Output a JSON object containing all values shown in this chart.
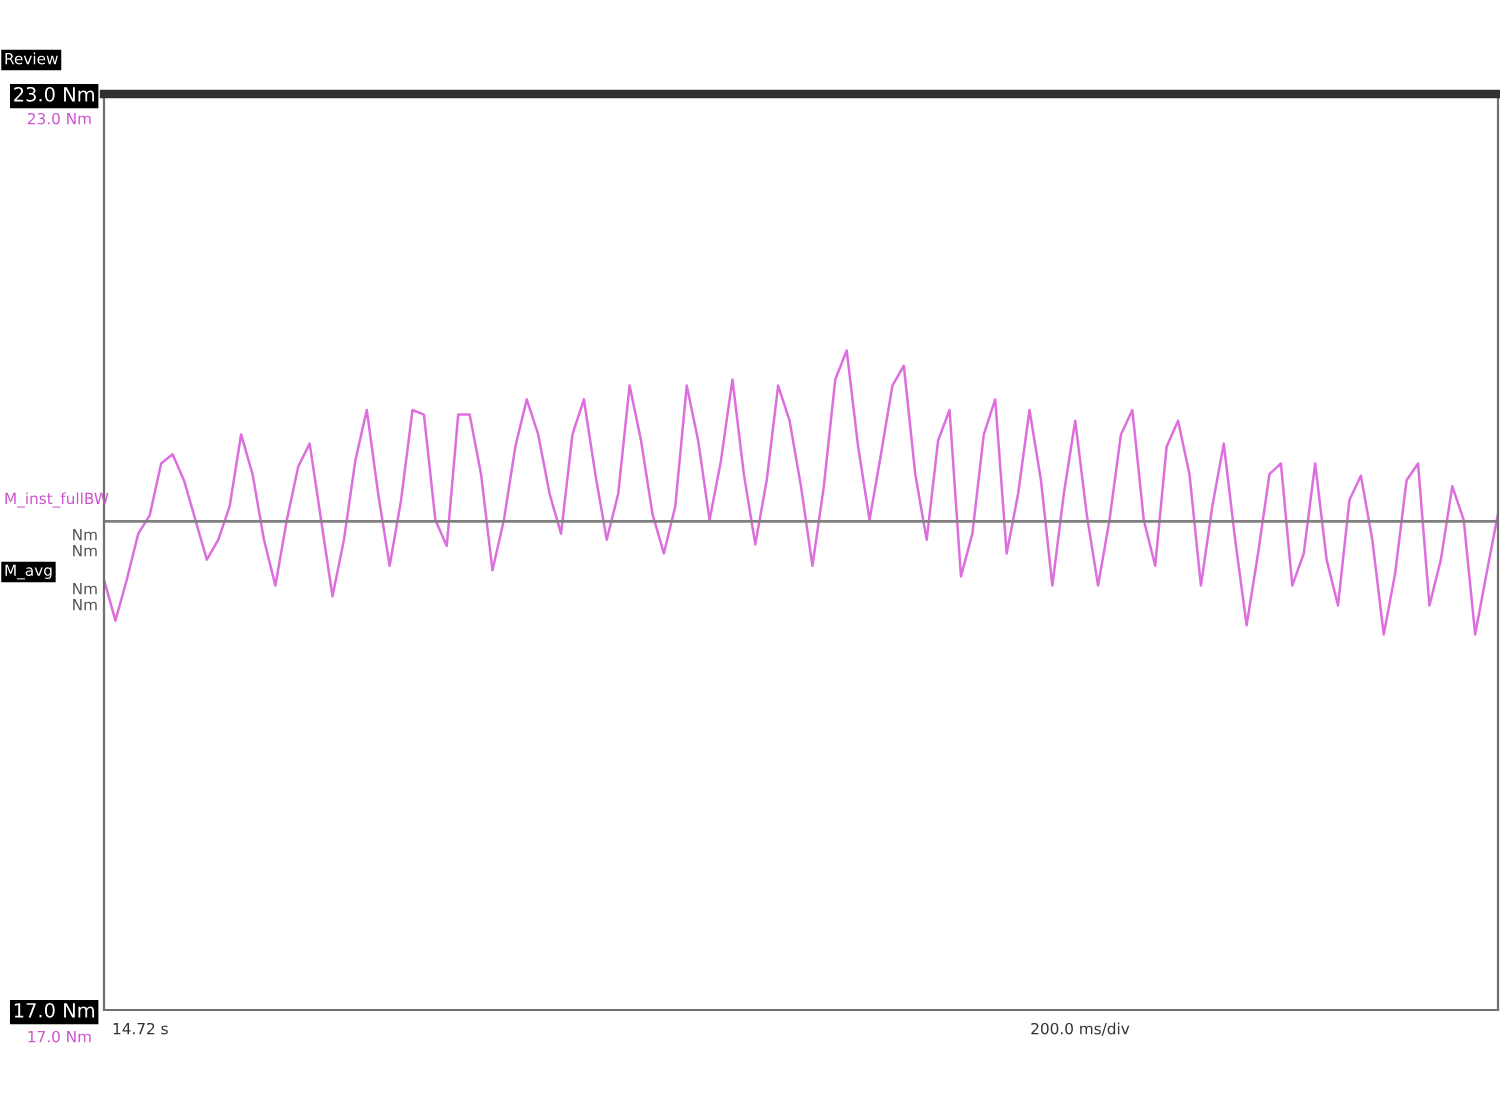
{
  "chart_data": {
    "type": "line",
    "ylim": [
      17.0,
      23.0
    ],
    "yticks": [
      {
        "value": 17.0,
        "label": "17.0 Nm"
      },
      {
        "value": 23.0,
        "label": "23.0 Nm"
      }
    ],
    "categories": [
      null,
      null,
      null,
      null,
      null,
      null,
      null,
      null,
      null,
      null,
      null,
      null,
      null,
      null,
      null,
      null,
      null,
      null,
      null,
      null,
      null,
      null,
      null,
      null,
      null,
      null,
      null,
      null,
      null,
      null,
      null,
      null,
      null,
      null,
      null,
      null,
      null,
      null,
      null,
      null,
      null,
      null,
      null,
      null,
      null,
      null,
      null,
      null,
      null,
      null,
      null,
      null,
      null,
      null,
      null,
      null,
      null,
      null,
      null,
      null,
      null,
      null,
      null,
      null,
      null,
      null,
      null,
      null,
      null,
      null,
      null,
      null,
      null,
      null,
      null,
      null,
      null,
      null,
      null,
      null,
      null,
      null,
      null,
      null,
      null,
      null,
      null,
      null,
      null,
      null,
      null,
      null,
      null,
      null,
      null,
      null,
      null,
      null,
      null,
      null,
      null,
      null,
      null,
      null,
      null,
      null,
      null,
      null,
      null,
      null,
      null,
      null,
      null,
      null,
      null,
      null,
      null,
      null,
      null,
      null,
      null,
      null,
      null
    ],
    "grid": false,
    "legend": false,
    "ref_lines": [
      {
        "axis": "y",
        "value": 20.2,
        "color": "#808080"
      }
    ],
    "annotations": [
      "Review",
      "23.0 Nm",
      "17.0 Nm",
      "M_inst_fullBW",
      "Nm",
      "Nm",
      "M_avg",
      "Nm",
      "Nm",
      "200.0 ms/div",
      "14.72 s"
    ],
    "series": [
      {
        "color": "#dd6fdd",
        "values": [
          19.82,
          19.55,
          19.82,
          20.12,
          20.24,
          20.58,
          20.64,
          20.47,
          20.21,
          19.95,
          20.08,
          20.3,
          20.77,
          20.51,
          20.08,
          19.78,
          20.21,
          20.56,
          20.71,
          20.21,
          19.71,
          20.08,
          20.6,
          20.93,
          20.38,
          19.91,
          20.34,
          20.93,
          20.9,
          20.21,
          20.04,
          20.9,
          20.9,
          20.51,
          19.88,
          20.21,
          20.69,
          21.0,
          20.77,
          20.38,
          20.12,
          20.77,
          21.0,
          20.51,
          20.08,
          20.38,
          21.09,
          20.73,
          20.25,
          19.99,
          20.3,
          21.09,
          20.73,
          20.21,
          20.6,
          21.13,
          20.51,
          20.05,
          20.47,
          21.09,
          20.86,
          20.43,
          19.91,
          20.43,
          21.13,
          21.32,
          20.69,
          20.21,
          20.64,
          21.09,
          21.22,
          20.51,
          20.08,
          20.73,
          20.93,
          19.84,
          20.12,
          20.77,
          21.0,
          19.99,
          20.38,
          20.93,
          20.47,
          19.78,
          20.38,
          20.86,
          20.25,
          19.78,
          20.21,
          20.77,
          20.93,
          20.21,
          19.91,
          20.69,
          20.86,
          20.51,
          19.78,
          20.3,
          20.71,
          20.08,
          19.52,
          19.99,
          20.51,
          20.58,
          19.78,
          19.99,
          20.58,
          19.95,
          19.65,
          20.34,
          20.5,
          20.08,
          19.46,
          19.86,
          20.47,
          20.58,
          19.65,
          19.95,
          20.43,
          20.21,
          19.46,
          19.86,
          20.25
        ]
      }
    ]
  }
}
